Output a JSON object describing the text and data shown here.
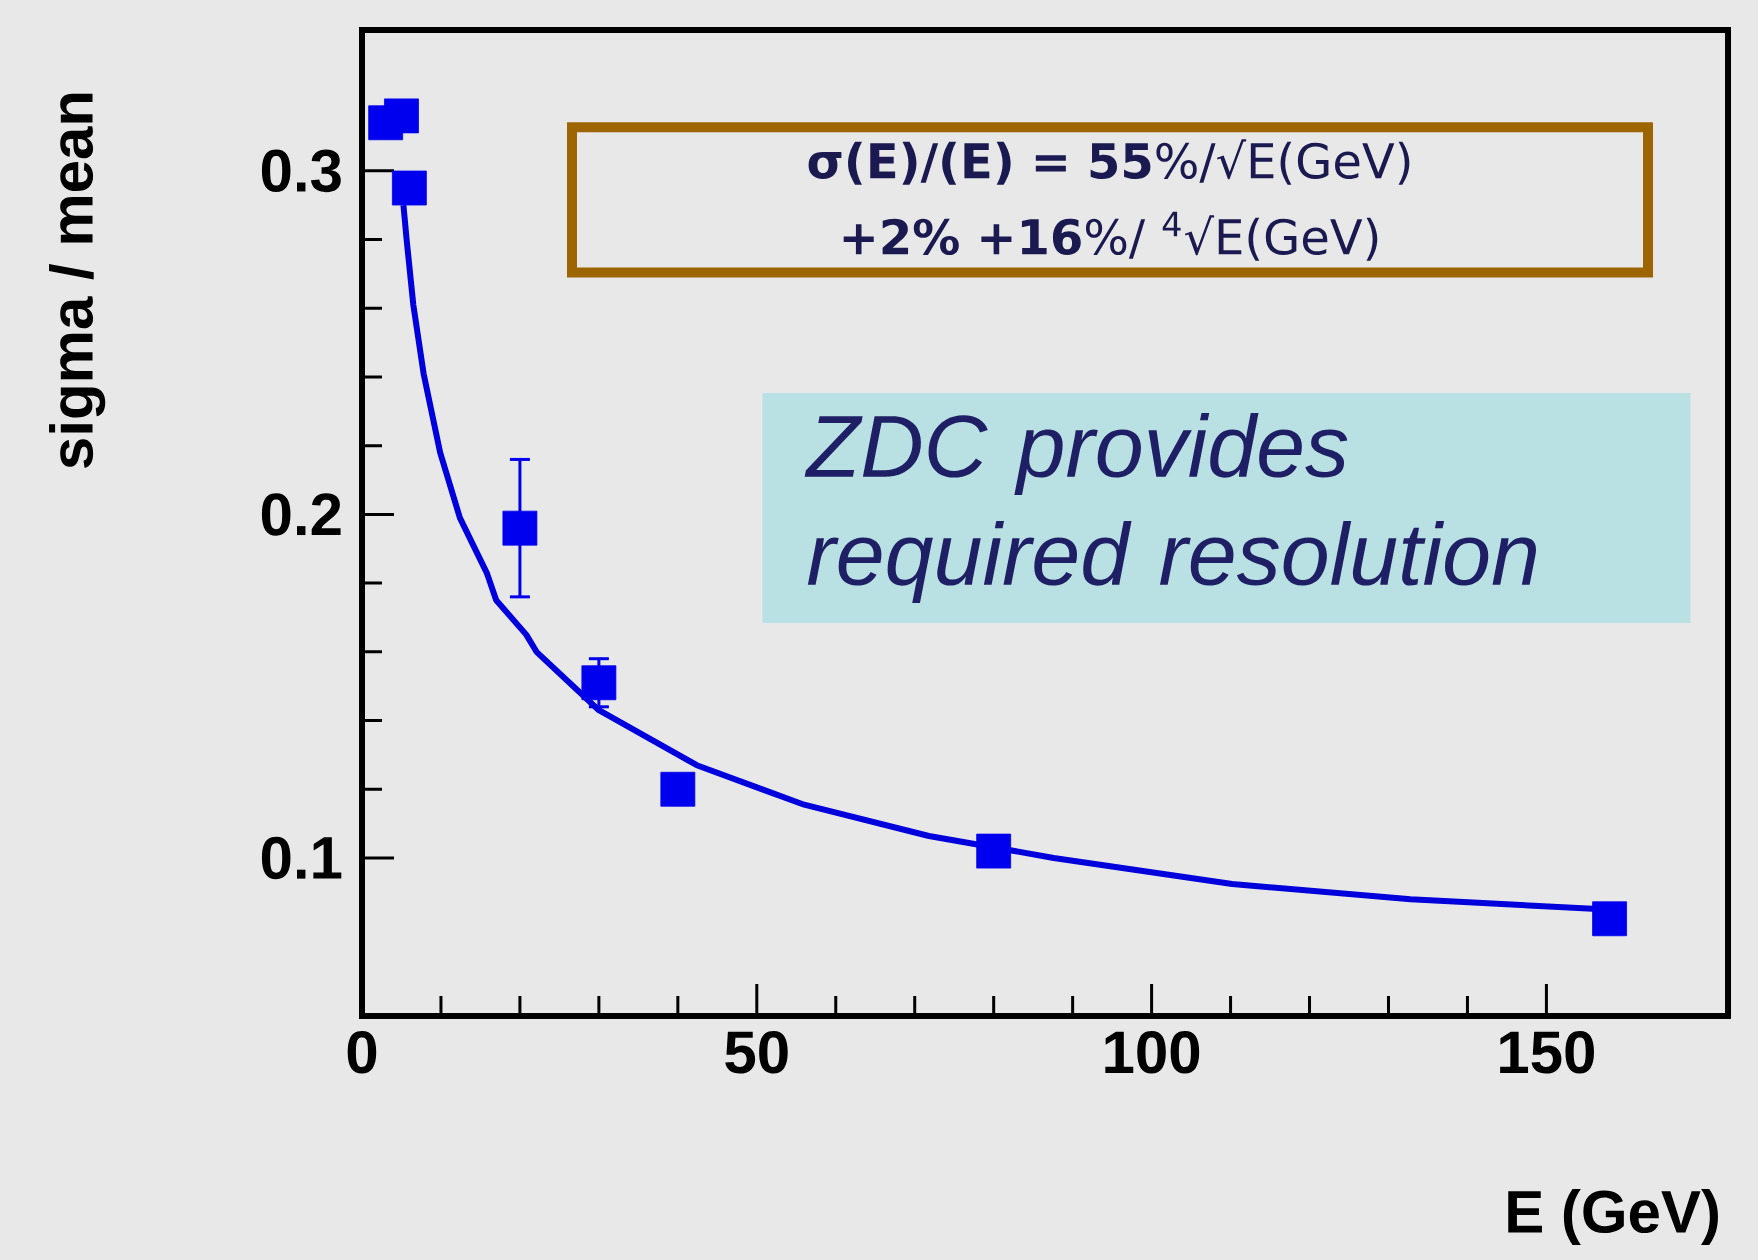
{
  "chart_data": {
    "type": "scatter",
    "xlabel": "E (GeV)",
    "ylabel": "sigma / mean",
    "xlim": [
      0,
      173
    ],
    "ylim": [
      0.054,
      0.341
    ],
    "xticks": [
      0,
      50,
      100,
      150
    ],
    "yticks": [
      0.1,
      0.2,
      0.3
    ],
    "grid": false,
    "marker": "square",
    "series": [
      {
        "color": "#0000ee",
        "x": [
          3,
          5,
          6,
          20,
          30,
          40,
          80,
          158
        ],
        "values": [
          0.314,
          0.316,
          0.295,
          0.196,
          0.151,
          0.12,
          0.102,
          0.0823
        ],
        "errors": [
          null,
          null,
          null,
          0.02,
          0.007,
          null,
          null,
          null
        ]
      },
      {
        "type": "line",
        "color": "#0000dd",
        "marker": "none",
        "line_style": "solid",
        "x": [
          5.25,
          5.65,
          6.5,
          7.8,
          9.9,
          12.4,
          15.8,
          17,
          20.8,
          22.1,
          30,
          42.4,
          56,
          71.8,
          87.6,
          110.2,
          132.8,
          157.7
        ],
        "values": [
          0.29,
          0.28,
          0.261,
          0.241,
          0.218,
          0.199,
          0.183,
          0.175,
          0.165,
          0.16,
          0.143,
          0.127,
          0.1155,
          0.1064,
          0.1,
          0.0924,
          0.088,
          0.085
        ]
      }
    ],
    "annotations": [
      "**σ(E)/(E) = 55**%/√E(GeV) **+2%** **+16**%/ $^{4}$√E(GeV)",
      "ZDC provides required resolution"
    ]
  }
}
